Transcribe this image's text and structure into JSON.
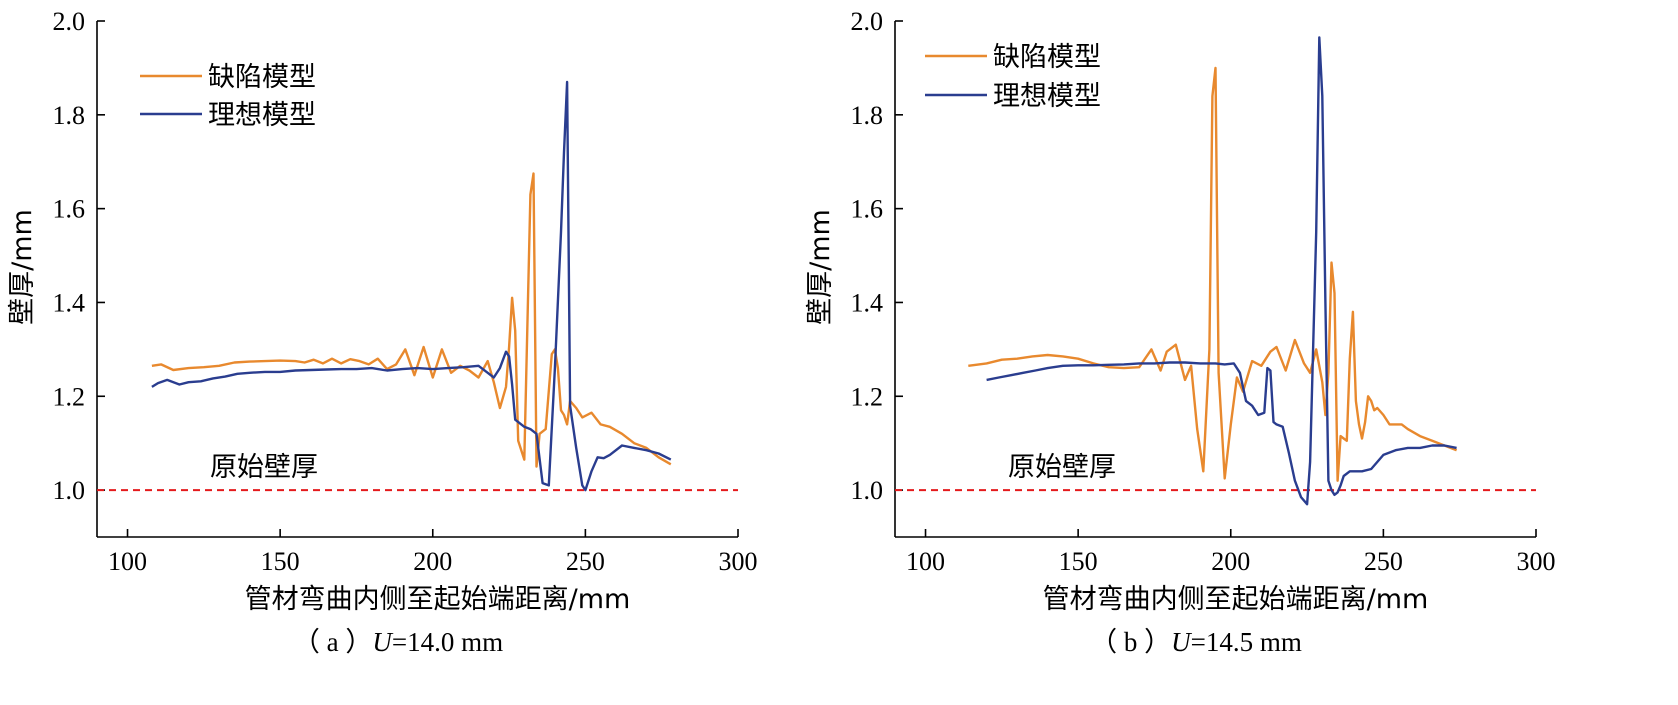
{
  "chart_data": [
    {
      "type": "line",
      "caption": "（ a ）U=14.0 mm",
      "caption_prefix": "（ a ）",
      "caption_var": "U",
      "caption_value": "=14.0 mm",
      "xlabel": "管材弯曲内侧至起始端距离/mm",
      "ylabel": "壁厚/mm",
      "xlim": [
        90,
        300
      ],
      "ylim": [
        0.9,
        2.0
      ],
      "xticks": [
        "100",
        "150",
        "200",
        "250",
        "300"
      ],
      "yticks": [
        "1.0",
        "1.2",
        "1.4",
        "1.6",
        "1.8",
        "2.0"
      ],
      "legend_position": "top-left",
      "reference_line": {
        "y": 1.0,
        "label": "原始壁厚",
        "color": "#e41a1c"
      },
      "series": [
        {
          "name": "缺陷模型",
          "color": "#e8892e",
          "x": [
            108,
            111,
            115,
            120,
            125,
            130,
            135,
            140,
            145,
            150,
            155,
            158,
            161,
            164,
            167,
            170,
            173,
            176,
            179,
            182,
            185,
            188,
            191,
            194,
            197,
            200,
            203,
            206,
            209,
            212,
            215,
            218,
            220,
            222,
            224,
            225,
            226,
            227,
            228,
            230,
            232,
            233,
            234,
            235,
            237,
            239,
            240,
            241,
            242,
            243,
            244,
            245,
            247,
            249,
            252,
            255,
            258,
            262,
            266,
            270,
            274,
            278
          ],
          "y": [
            1.265,
            1.268,
            1.256,
            1.26,
            1.262,
            1.265,
            1.272,
            1.274,
            1.275,
            1.276,
            1.275,
            1.272,
            1.278,
            1.27,
            1.28,
            1.27,
            1.279,
            1.275,
            1.268,
            1.28,
            1.258,
            1.268,
            1.3,
            1.245,
            1.305,
            1.24,
            1.3,
            1.25,
            1.265,
            1.255,
            1.24,
            1.275,
            1.23,
            1.175,
            1.22,
            1.305,
            1.41,
            1.34,
            1.105,
            1.065,
            1.63,
            1.675,
            1.05,
            1.12,
            1.13,
            1.29,
            1.3,
            1.26,
            1.17,
            1.16,
            1.14,
            1.19,
            1.175,
            1.155,
            1.165,
            1.14,
            1.135,
            1.12,
            1.1,
            1.09,
            1.07,
            1.055
          ]
        },
        {
          "name": "理想模型",
          "color": "#2a3d8f",
          "x": [
            108,
            110,
            113,
            117,
            120,
            124,
            128,
            132,
            136,
            140,
            145,
            150,
            155,
            160,
            165,
            170,
            175,
            180,
            185,
            190,
            195,
            200,
            205,
            210,
            215,
            218,
            220,
            222,
            224,
            225,
            226,
            227,
            230,
            232,
            234,
            236,
            238,
            240,
            242,
            243,
            244,
            245,
            247,
            249,
            250,
            252,
            254,
            256,
            258,
            262,
            266,
            270,
            274,
            278
          ],
          "y": [
            1.22,
            1.228,
            1.235,
            1.225,
            1.23,
            1.232,
            1.238,
            1.242,
            1.248,
            1.25,
            1.252,
            1.252,
            1.255,
            1.256,
            1.257,
            1.258,
            1.258,
            1.26,
            1.255,
            1.258,
            1.26,
            1.258,
            1.26,
            1.262,
            1.265,
            1.25,
            1.24,
            1.26,
            1.295,
            1.285,
            1.225,
            1.15,
            1.135,
            1.13,
            1.12,
            1.015,
            1.01,
            1.26,
            1.55,
            1.72,
            1.87,
            1.18,
            1.09,
            1.01,
            1.0,
            1.04,
            1.07,
            1.068,
            1.075,
            1.095,
            1.09,
            1.085,
            1.078,
            1.065
          ]
        }
      ]
    },
    {
      "type": "line",
      "caption": "（ b ）U=14.5 mm",
      "caption_prefix": "（ b ）",
      "caption_var": "U",
      "caption_value": "=14.5 mm",
      "xlabel": "管材弯曲内侧至起始端距离/mm",
      "ylabel": "壁厚/mm",
      "xlim": [
        90,
        300
      ],
      "ylim": [
        0.9,
        2.0
      ],
      "xticks": [
        "100",
        "150",
        "200",
        "250",
        "300"
      ],
      "yticks": [
        "1.0",
        "1.2",
        "1.4",
        "1.6",
        "1.8",
        "2.0"
      ],
      "legend_position": "top-left",
      "reference_line": {
        "y": 1.0,
        "label": "原始壁厚",
        "color": "#e41a1c"
      },
      "series": [
        {
          "name": "缺陷模型",
          "color": "#e8892e",
          "x": [
            114,
            120,
            125,
            130,
            135,
            140,
            145,
            150,
            155,
            160,
            165,
            170,
            174,
            177,
            179,
            182,
            185,
            187,
            189,
            191,
            193,
            194,
            195,
            196,
            198,
            200,
            202,
            204,
            207,
            210,
            213,
            215,
            218,
            221,
            224,
            226,
            228,
            230,
            231,
            232,
            233,
            234,
            235,
            236,
            237,
            238,
            239,
            240,
            241,
            242,
            243,
            244,
            245,
            246,
            247,
            248,
            250,
            252,
            254,
            256,
            258,
            262,
            266,
            270,
            274
          ],
          "y": [
            1.265,
            1.27,
            1.278,
            1.28,
            1.285,
            1.288,
            1.285,
            1.28,
            1.27,
            1.262,
            1.26,
            1.262,
            1.3,
            1.255,
            1.295,
            1.31,
            1.235,
            1.265,
            1.13,
            1.04,
            1.3,
            1.84,
            1.9,
            1.25,
            1.025,
            1.14,
            1.24,
            1.21,
            1.275,
            1.265,
            1.295,
            1.305,
            1.255,
            1.32,
            1.27,
            1.25,
            1.3,
            1.23,
            1.16,
            1.25,
            1.485,
            1.42,
            1.02,
            1.115,
            1.11,
            1.105,
            1.28,
            1.38,
            1.19,
            1.14,
            1.11,
            1.145,
            1.2,
            1.19,
            1.17,
            1.175,
            1.16,
            1.14,
            1.14,
            1.14,
            1.13,
            1.115,
            1.105,
            1.095,
            1.085
          ]
        },
        {
          "name": "理想模型",
          "color": "#2a3d8f",
          "x": [
            120,
            124,
            128,
            132,
            136,
            140,
            145,
            150,
            155,
            160,
            165,
            170,
            175,
            180,
            185,
            190,
            195,
            198,
            201,
            203,
            205,
            207,
            209,
            211,
            212,
            213,
            214,
            215,
            217,
            219,
            221,
            223,
            225,
            226,
            228,
            229,
            230,
            231,
            232,
            233,
            234,
            235,
            236,
            237,
            239,
            241,
            243,
            246,
            250,
            254,
            258,
            262,
            266,
            270,
            274
          ],
          "y": [
            1.235,
            1.24,
            1.245,
            1.25,
            1.255,
            1.26,
            1.265,
            1.266,
            1.266,
            1.267,
            1.268,
            1.27,
            1.27,
            1.272,
            1.272,
            1.27,
            1.27,
            1.268,
            1.27,
            1.25,
            1.19,
            1.18,
            1.16,
            1.165,
            1.26,
            1.255,
            1.145,
            1.14,
            1.135,
            1.08,
            1.02,
            0.985,
            0.97,
            1.06,
            1.55,
            1.965,
            1.84,
            1.4,
            1.02,
            1.0,
            0.99,
            0.995,
            1.01,
            1.03,
            1.04,
            1.04,
            1.04,
            1.045,
            1.075,
            1.085,
            1.09,
            1.09,
            1.095,
            1.095,
            1.09
          ]
        }
      ]
    }
  ]
}
